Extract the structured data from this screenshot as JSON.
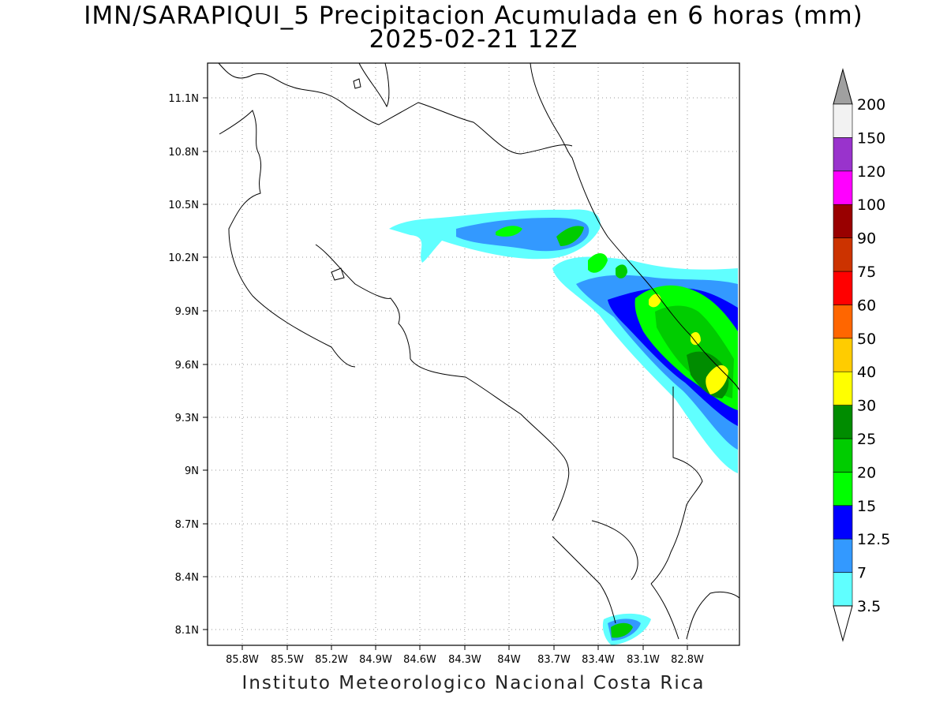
{
  "title_line1": "IMN/SARAPIQUI_5 Precipitacion Acumulada en 6 horas (mm)",
  "title_line2": "2025-02-21 12Z",
  "credit": "Instituto Meteorologico Nacional Costa Rica",
  "map": {
    "lon_range": [
      -86.1,
      -82.45
    ],
    "lat_range": [
      8.0,
      11.3
    ],
    "grid": "dotted",
    "x_tick_labels": [
      "85.8W",
      "85.5W",
      "85.2W",
      "84.9W",
      "84.6W",
      "84.3W",
      "84W",
      "83.7W",
      "83.4W",
      "83.1W",
      "82.8W"
    ],
    "y_tick_labels": [
      "11.1N",
      "10.8N",
      "10.5N",
      "10.2N",
      "9.9N",
      "9.6N",
      "9.3N",
      "9N",
      "8.7N",
      "8.4N",
      "8.1N"
    ]
  },
  "colorbar": {
    "levels": [
      "3.5",
      "7",
      "12.5",
      "15",
      "20",
      "25",
      "30",
      "40",
      "50",
      "60",
      "75",
      "90",
      "100",
      "120",
      "150",
      "200"
    ],
    "colors": [
      "#ffffff",
      "#60ffff",
      "#3399ff",
      "#0000ff",
      "#00ff00",
      "#00cc00",
      "#008c00",
      "#ffff00",
      "#ffcc00",
      "#ff6600",
      "#ff0000",
      "#cc3300",
      "#990000",
      "#ff00ff",
      "#9933cc",
      "#f2f2f2",
      "#a0a0a0"
    ]
  }
}
